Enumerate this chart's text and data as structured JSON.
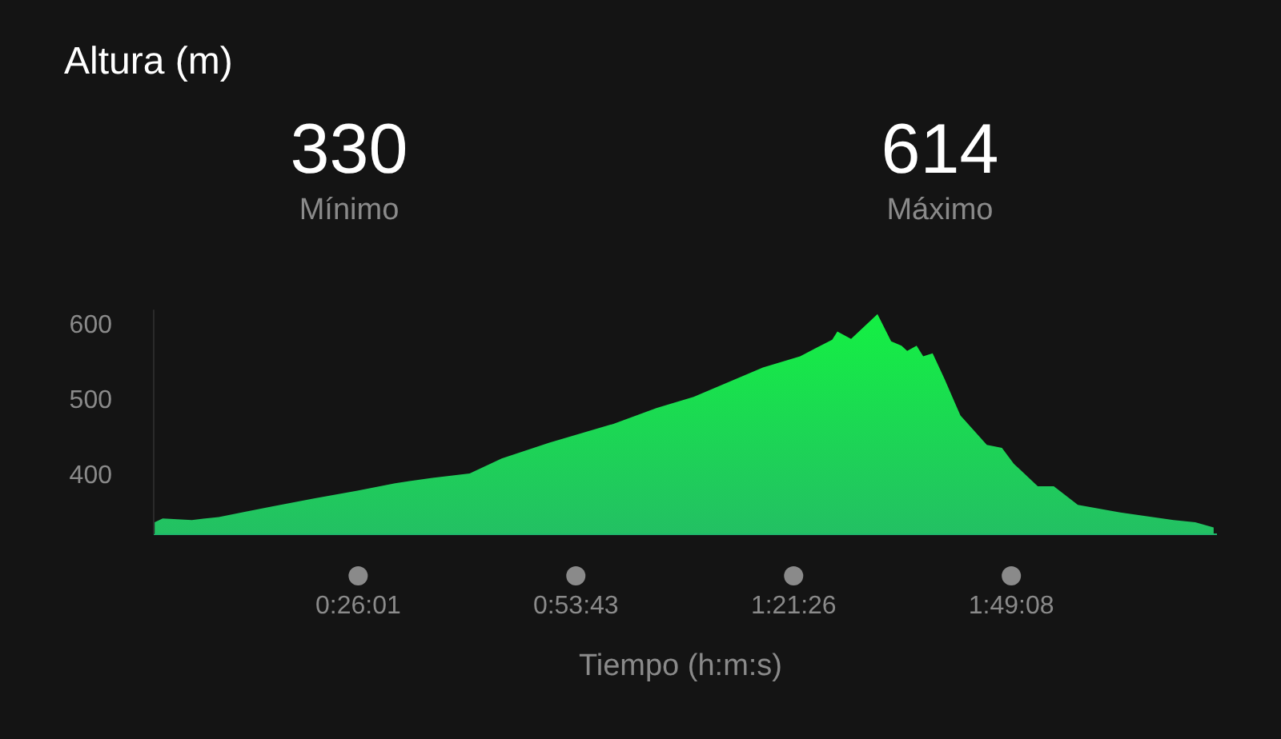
{
  "chart_data": {
    "type": "area",
    "title": "Altura (m)",
    "xlabel": "Tiempo (h:m:s)",
    "annotations": [
      "330",
      "Mínimo",
      "614",
      "Máximo"
    ],
    "xlim": [
      0,
      2.255
    ],
    "ylim": [
      321,
      620
    ],
    "xticks": [
      {
        "value": 0.4336,
        "label": "0:26:01"
      },
      {
        "value": 0.8953,
        "label": "0:53:43"
      },
      {
        "value": 1.3572,
        "label": "1:21:26"
      },
      {
        "value": 1.8189,
        "label": "1:49:08"
      }
    ],
    "yticks": [
      400,
      500,
      600
    ],
    "grid": false,
    "marker": "none",
    "series": [
      {
        "color": "#12d83c",
        "x": [
          0.002,
          0.019,
          0.081,
          0.138,
          0.195,
          0.251,
          0.342,
          0.432,
          0.512,
          0.591,
          0.67,
          0.738,
          0.839,
          0.975,
          1.066,
          1.145,
          1.292,
          1.371,
          1.439,
          1.45,
          1.479,
          1.535,
          1.564,
          1.586,
          1.598,
          1.618,
          1.632,
          1.652,
          1.677,
          1.711,
          1.767,
          1.799,
          1.824,
          1.875,
          1.909,
          1.96,
          2.05,
          2.163,
          2.209,
          2.248
        ],
        "values": [
          337,
          342,
          340,
          344,
          351,
          358,
          369,
          379,
          389,
          396,
          402,
          422,
          443,
          468,
          489,
          504,
          543,
          558,
          580,
          591,
          581,
          614,
          578,
          572,
          565,
          572,
          558,
          562,
          528,
          479,
          440,
          436,
          415,
          385,
          385,
          360,
          350,
          340,
          337,
          330
        ]
      }
    ]
  }
}
